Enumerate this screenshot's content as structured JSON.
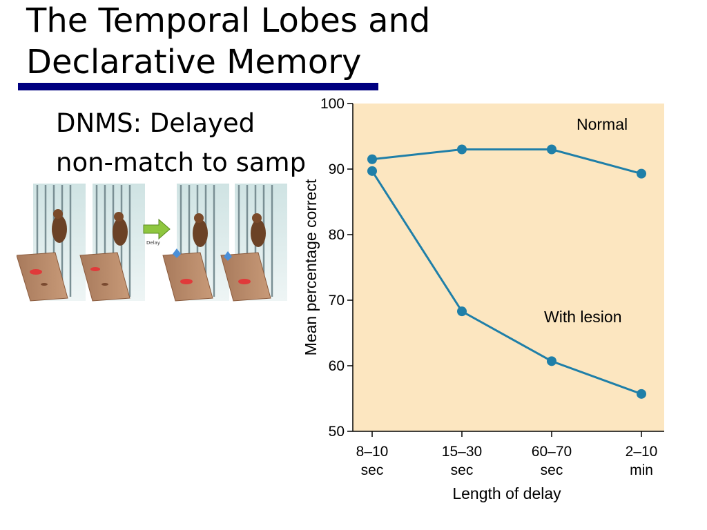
{
  "slide": {
    "title_line1": "The Temporal Lobes and",
    "title_line2": "Declarative Memory",
    "bullet_line1": "DNMS: Delayed",
    "bullet_line2": "non-match to sample",
    "rule_color": "#000080"
  },
  "illustration": {
    "description_icon": "monkey-cage-icon",
    "delay_label": "Delay"
  },
  "chart_data": {
    "type": "line",
    "categories": [
      "8–10 sec",
      "15–30 sec",
      "60–70 sec",
      "2–10 min"
    ],
    "category_lines": [
      [
        "8–10",
        "sec"
      ],
      [
        "15–30",
        "sec"
      ],
      [
        "60–70",
        "sec"
      ],
      [
        "2–10",
        "min"
      ]
    ],
    "series": [
      {
        "name": "Normal",
        "values": [
          91.5,
          93,
          93,
          89.3
        ]
      },
      {
        "name": "With lesion",
        "values": [
          89.7,
          68.3,
          60.7,
          55.7
        ]
      }
    ],
    "xlabel": "Length of delay",
    "ylabel": "Mean percentage correct",
    "ylim": [
      50,
      100
    ],
    "yticks": [
      50,
      60,
      70,
      80,
      90,
      100
    ],
    "background_color": "#fce6c0",
    "line_color": "#1f7fa8",
    "grid": false,
    "legend": "inline labels"
  }
}
